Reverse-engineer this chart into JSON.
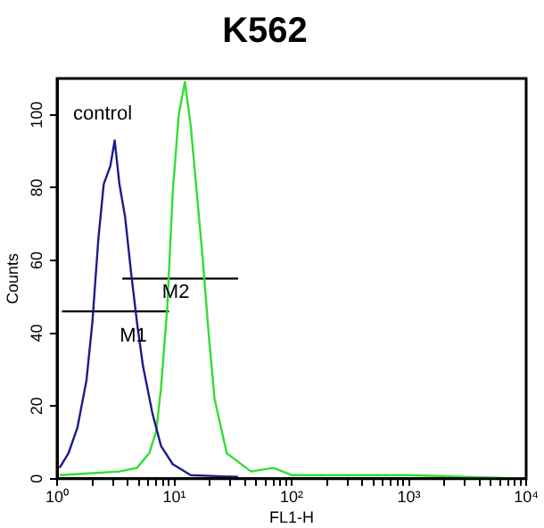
{
  "chart_data": {
    "type": "line",
    "title": "K562",
    "xlabel": "FL1-H",
    "ylabel": "Counts",
    "log": "x",
    "grid": false,
    "legend": false,
    "marker": "none",
    "xlim": [
      1,
      10000
    ],
    "ylim": [
      0,
      110
    ],
    "xticks": [
      {
        "value": 1,
        "label": "10⁰"
      },
      {
        "value": 2,
        "label": null
      },
      {
        "value": 3,
        "label": null
      },
      {
        "value": 4,
        "label": null
      },
      {
        "value": 5,
        "label": null
      },
      {
        "value": 6,
        "label": null
      },
      {
        "value": 7,
        "label": null
      },
      {
        "value": 8,
        "label": null
      },
      {
        "value": 9,
        "label": null
      },
      {
        "value": 10,
        "label": "10¹"
      },
      {
        "value": 20,
        "label": null
      },
      {
        "value": 30,
        "label": null
      },
      {
        "value": 40,
        "label": null
      },
      {
        "value": 50,
        "label": null
      },
      {
        "value": 60,
        "label": null
      },
      {
        "value": 70,
        "label": null
      },
      {
        "value": 80,
        "label": null
      },
      {
        "value": 90,
        "label": null
      },
      {
        "value": 100,
        "label": "10²"
      },
      {
        "value": 200,
        "label": null
      },
      {
        "value": 300,
        "label": null
      },
      {
        "value": 400,
        "label": null
      },
      {
        "value": 500,
        "label": null
      },
      {
        "value": 600,
        "label": null
      },
      {
        "value": 700,
        "label": null
      },
      {
        "value": 800,
        "label": null
      },
      {
        "value": 900,
        "label": null
      },
      {
        "value": 1000,
        "label": "10³"
      },
      {
        "value": 2000,
        "label": null
      },
      {
        "value": 3000,
        "label": null
      },
      {
        "value": 4000,
        "label": null
      },
      {
        "value": 5000,
        "label": null
      },
      {
        "value": 6000,
        "label": null
      },
      {
        "value": 7000,
        "label": null
      },
      {
        "value": 8000,
        "label": null
      },
      {
        "value": 9000,
        "label": null
      },
      {
        "value": 10000,
        "label": "10⁴"
      }
    ],
    "yticks": [
      0,
      20,
      40,
      60,
      80,
      100
    ],
    "series": [
      {
        "color": "#1c1c8a",
        "x": [
          1.05,
          1.25,
          1.49,
          1.78,
          2.0,
          2.25,
          2.5,
          2.85,
          3.1,
          3.4,
          3.8,
          4.3,
          4.8,
          5.4,
          6.5,
          7.7,
          9.7,
          13.8,
          35
        ],
        "values": [
          3,
          7,
          14,
          27,
          43,
          66,
          81,
          86,
          93,
          81,
          72,
          56,
          43,
          31,
          18,
          9,
          4,
          1,
          0.5
        ]
      },
      {
        "color": "#33dd33",
        "x": [
          1.05,
          3.4,
          4.8,
          6.1,
          7.0,
          7.7,
          8.7,
          9.7,
          10.9,
          12.3,
          13.8,
          15.5,
          17.4,
          19.6,
          22,
          28,
          45,
          70,
          100,
          1000,
          10000
        ],
        "values": [
          1,
          2,
          3,
          7,
          13,
          25,
          47,
          79,
          100,
          109,
          97,
          79,
          61,
          40,
          22,
          7,
          2,
          3,
          1,
          1,
          0
        ]
      },
      {
        "name": "M1",
        "color": "#000000",
        "x": [
          1.1,
          9
        ],
        "values": [
          46,
          46
        ]
      },
      {
        "name": "M2",
        "color": "#000000",
        "x": [
          3.6,
          35
        ],
        "values": [
          55,
          55
        ]
      }
    ],
    "annotations": [
      "control"
    ]
  }
}
